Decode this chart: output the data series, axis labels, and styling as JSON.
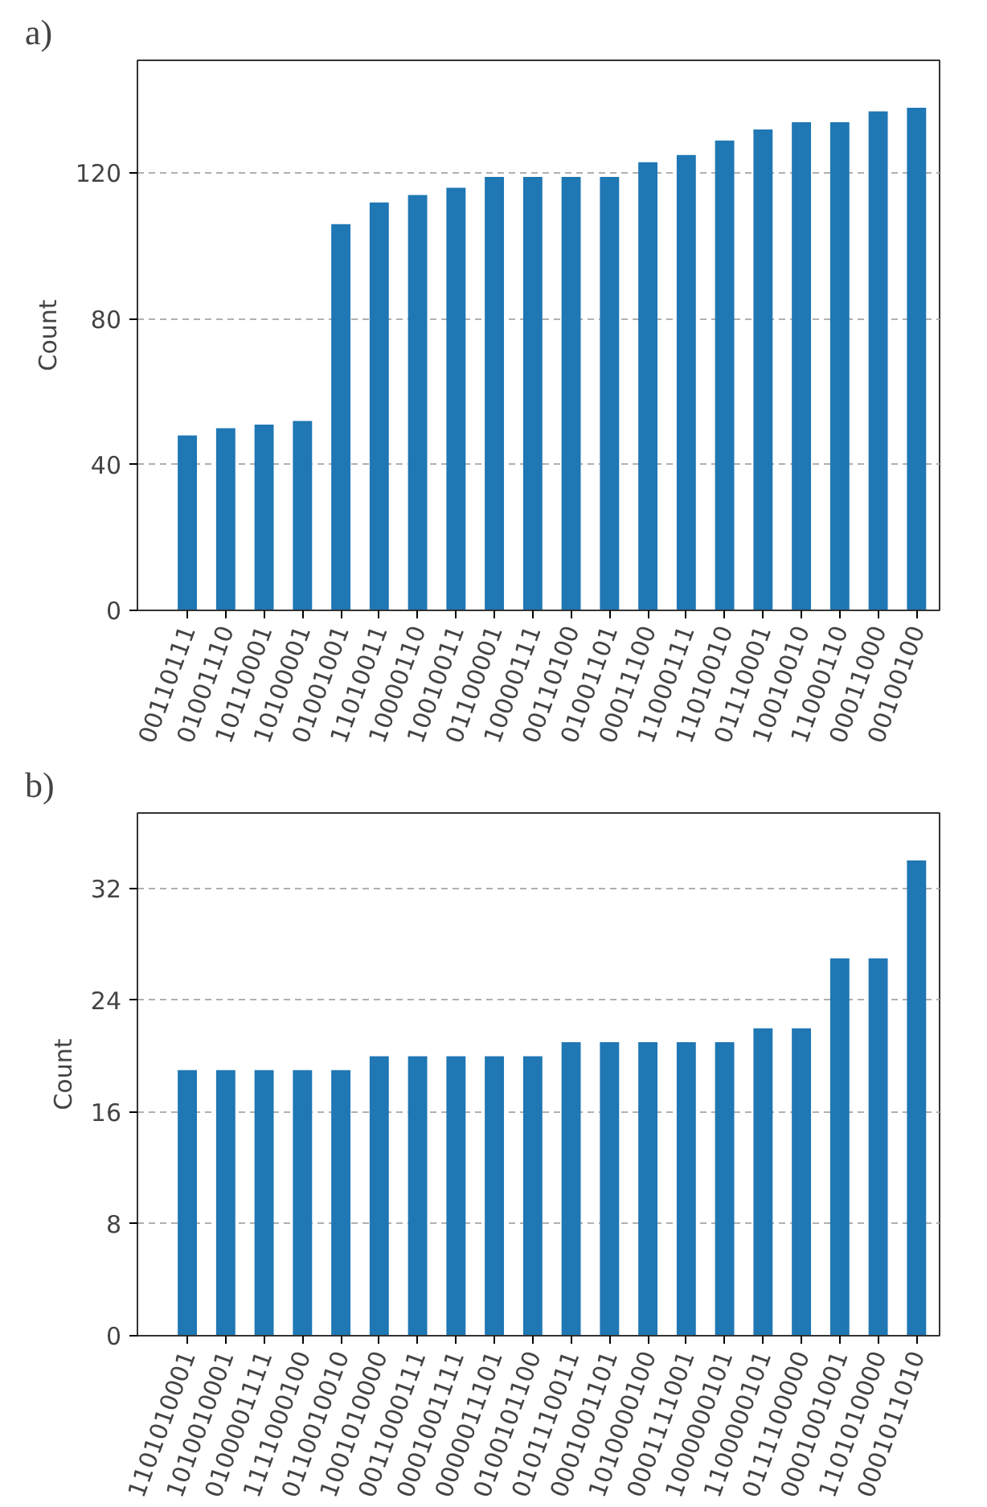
{
  "chart_data": [
    {
      "type": "bar",
      "title": "a)",
      "ylabel": "Count",
      "categories": [
        "00110111",
        "01001110",
        "10110001",
        "10100001",
        "01001001",
        "11010011",
        "10000110",
        "10010011",
        "01100001",
        "10000111",
        "00110100",
        "01001101",
        "00011100",
        "11000111",
        "11010010",
        "01110001",
        "10010010",
        "11000110",
        "00011000",
        "00100100"
      ],
      "values": [
        48,
        50,
        51,
        52,
        106,
        112,
        114,
        116,
        119,
        119,
        119,
        119,
        123,
        125,
        129,
        132,
        134,
        134,
        137,
        138
      ],
      "color": "#1f77b4",
      "ylim": [
        0,
        151
      ],
      "yticks": [
        0,
        40,
        80,
        120
      ],
      "grid": "y"
    },
    {
      "type": "bar",
      "title": "b)",
      "ylabel": "Count",
      "categories": [
        "1101010001",
        "1010010001",
        "0100001111",
        "1111000100",
        "0110010010",
        "1001010000",
        "0011000111",
        "0001001111",
        "0000011101",
        "0100101100",
        "0101110011",
        "0001001101",
        "1010000100",
        "0001111001",
        "1000000101",
        "1100000101",
        "0111100000",
        "0001001001",
        "1101010000",
        "0001011010"
      ],
      "values": [
        19,
        19,
        19,
        19,
        19,
        20,
        20,
        20,
        20,
        20,
        21,
        21,
        21,
        21,
        21,
        22,
        22,
        27,
        27,
        34
      ],
      "color": "#1f77b4",
      "ylim": [
        0,
        37.4
      ],
      "yticks": [
        0,
        8,
        16,
        24,
        32
      ],
      "grid": "y"
    }
  ]
}
